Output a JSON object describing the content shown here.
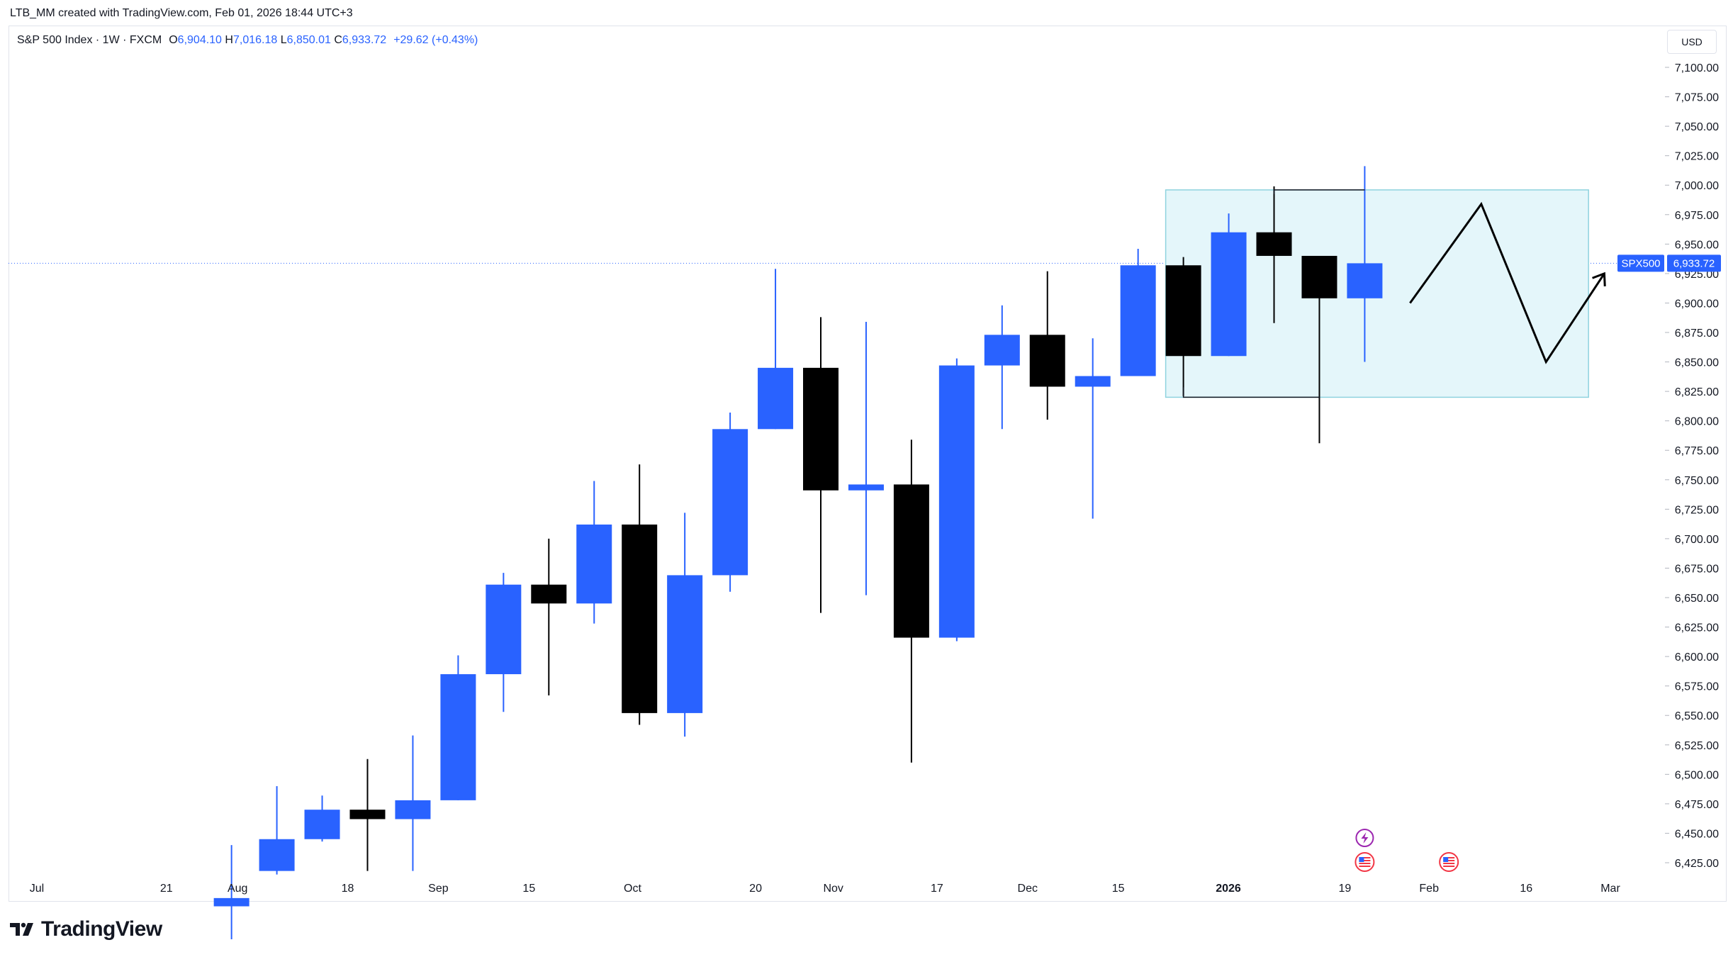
{
  "header": {
    "attribution": "LTB_MM created with TradingView.com, Feb 01, 2026 18:44 UTC+3"
  },
  "legend": {
    "symbol": "S&P 500 Index · 1W · FXCM",
    "open_key": "O",
    "open": "6,904.10",
    "high_key": "H",
    "high": "7,016.18",
    "low_key": "L",
    "low": "6,850.01",
    "close_key": "C",
    "close": "6,933.72",
    "change": "+29.62 (+0.43%)"
  },
  "currency": "USD",
  "price_badge": {
    "ticker": "SPX500",
    "price": "6,933.72"
  },
  "logo": {
    "text": "TradingView",
    "icon": "tradingview-logo-icon"
  },
  "colors": {
    "up": "#2962ff",
    "down": "#000000",
    "box_fill": "#e4f6fa",
    "box_border": "#8fd3df"
  },
  "chart_data": {
    "type": "candlestick",
    "timeframe": "1W",
    "ylim": [
      6400,
      7125
    ],
    "y_ticks": [
      {
        "v": 7100,
        "label": "7,100.00"
      },
      {
        "v": 7075,
        "label": "7,075.00"
      },
      {
        "v": 7050,
        "label": "7,050.00"
      },
      {
        "v": 7025,
        "label": "7,025.00"
      },
      {
        "v": 7000,
        "label": "7,000.00"
      },
      {
        "v": 6975,
        "label": "6,975.00"
      },
      {
        "v": 6950,
        "label": "6,950.00"
      },
      {
        "v": 6925,
        "label": "6,925.00"
      },
      {
        "v": 6900,
        "label": "6,900.00"
      },
      {
        "v": 6875,
        "label": "6,875.00"
      },
      {
        "v": 6850,
        "label": "6,850.00"
      },
      {
        "v": 6825,
        "label": "6,825.00"
      },
      {
        "v": 6800,
        "label": "6,800.00"
      },
      {
        "v": 6775,
        "label": "6,775.00"
      },
      {
        "v": 6750,
        "label": "6,750.00"
      },
      {
        "v": 6725,
        "label": "6,725.00"
      },
      {
        "v": 6700,
        "label": "6,700.00"
      },
      {
        "v": 6675,
        "label": "6,675.00"
      },
      {
        "v": 6650,
        "label": "6,650.00"
      },
      {
        "v": 6625,
        "label": "6,625.00"
      },
      {
        "v": 6600,
        "label": "6,600.00"
      },
      {
        "v": 6575,
        "label": "6,575.00"
      },
      {
        "v": 6550,
        "label": "6,550.00"
      },
      {
        "v": 6525,
        "label": "6,525.00"
      },
      {
        "v": 6500,
        "label": "6,500.00"
      },
      {
        "v": 6475,
        "label": "6,475.00"
      },
      {
        "v": 6450,
        "label": "6,450.00"
      },
      {
        "v": 6425,
        "label": "6,425.00"
      }
    ],
    "x_ticks": [
      {
        "date": "2025-07-01",
        "label": "Jul"
      },
      {
        "date": "2025-07-21",
        "label": "21"
      },
      {
        "date": "2025-08-01",
        "label": "Aug"
      },
      {
        "date": "2025-08-18",
        "label": "18"
      },
      {
        "date": "2025-09-01",
        "label": "Sep"
      },
      {
        "date": "2025-09-15",
        "label": "15"
      },
      {
        "date": "2025-10-01",
        "label": "Oct"
      },
      {
        "date": "2025-10-20",
        "label": "20"
      },
      {
        "date": "2025-11-01",
        "label": "Nov"
      },
      {
        "date": "2025-11-17",
        "label": "17"
      },
      {
        "date": "2025-12-01",
        "label": "Dec"
      },
      {
        "date": "2025-12-15",
        "label": "15"
      },
      {
        "date": "2026-01-01",
        "label": "2026",
        "bold": true
      },
      {
        "date": "2026-01-19",
        "label": "19"
      },
      {
        "date": "2026-02-01",
        "label": "Feb"
      },
      {
        "date": "2026-02-16",
        "label": "16"
      },
      {
        "date": "2026-03-01",
        "label": "Mar"
      }
    ],
    "candles": [
      {
        "date": "2025-07-28",
        "open": 6388,
        "high": 6440,
        "low": 6360,
        "close": 6395
      },
      {
        "date": "2025-08-04",
        "open": 6418,
        "high": 6490,
        "low": 6415,
        "close": 6445
      },
      {
        "date": "2025-08-11",
        "open": 6445,
        "high": 6482,
        "low": 6443,
        "close": 6470
      },
      {
        "date": "2025-08-18",
        "open": 6470,
        "high": 6513,
        "low": 6418,
        "close": 6462
      },
      {
        "date": "2025-08-25",
        "open": 6462,
        "high": 6533,
        "low": 6418,
        "close": 6478
      },
      {
        "date": "2025-09-01",
        "open": 6478,
        "high": 6601,
        "low": 6478,
        "close": 6585
      },
      {
        "date": "2025-09-08",
        "open": 6585,
        "high": 6671,
        "low": 6553,
        "close": 6661
      },
      {
        "date": "2025-09-15",
        "open": 6661,
        "high": 6700,
        "low": 6567,
        "close": 6645
      },
      {
        "date": "2025-09-22",
        "open": 6645,
        "high": 6749,
        "low": 6628,
        "close": 6712
      },
      {
        "date": "2025-09-29",
        "open": 6712,
        "high": 6763,
        "low": 6542,
        "close": 6552
      },
      {
        "date": "2025-10-06",
        "open": 6552,
        "high": 6722,
        "low": 6532,
        "close": 6669
      },
      {
        "date": "2025-10-13",
        "open": 6669,
        "high": 6807,
        "low": 6655,
        "close": 6793
      },
      {
        "date": "2025-10-20",
        "open": 6793,
        "high": 6929,
        "low": 6793,
        "close": 6845
      },
      {
        "date": "2025-10-27",
        "open": 6845,
        "high": 6888,
        "low": 6637,
        "close": 6741
      },
      {
        "date": "2025-11-03",
        "open": 6741,
        "high": 6884,
        "low": 6652,
        "close": 6746
      },
      {
        "date": "2025-11-10",
        "open": 6746,
        "high": 6784,
        "low": 6510,
        "close": 6616
      },
      {
        "date": "2025-11-17",
        "open": 6616,
        "high": 6853,
        "low": 6613,
        "close": 6847
      },
      {
        "date": "2025-11-24",
        "open": 6847,
        "high": 6898,
        "low": 6793,
        "close": 6873
      },
      {
        "date": "2025-12-01",
        "open": 6873,
        "high": 6927,
        "low": 6801,
        "close": 6829
      },
      {
        "date": "2025-12-08",
        "open": 6829,
        "high": 6870,
        "low": 6717,
        "close": 6838
      },
      {
        "date": "2025-12-15",
        "open": 6838,
        "high": 6946,
        "low": 6838,
        "close": 6932
      },
      {
        "date": "2025-12-22",
        "open": 6932,
        "high": 6939,
        "low": 6821,
        "close": 6855
      },
      {
        "date": "2025-12-29",
        "open": 6855,
        "high": 6976,
        "low": 6855,
        "close": 6960
      },
      {
        "date": "2026-01-05",
        "open": 6960,
        "high": 6999,
        "low": 6883,
        "close": 6940
      },
      {
        "date": "2026-01-12",
        "open": 6940,
        "high": 6940,
        "low": 6781,
        "close": 6904
      },
      {
        "date": "2026-01-19",
        "open": 6904,
        "high": 7016.18,
        "low": 6850.01,
        "close": 6933.72
      }
    ],
    "current_price": 6933.72,
    "annotations": {
      "range_box": {
        "start": "2025-12-22",
        "end": "2026-02-23",
        "top": 6996,
        "bottom": 6820
      },
      "range_line_top": {
        "from": "2026-01-05",
        "to": "2026-01-19",
        "value": 6996
      },
      "range_line_bottom": {
        "from": "2025-12-22",
        "to": "2026-01-12",
        "value": 6820
      },
      "projection_path": [
        {
          "date": "2026-01-26",
          "value": 6900
        },
        {
          "date": "2026-02-06",
          "value": 6984
        },
        {
          "date": "2026-02-16",
          "value": 6850
        },
        {
          "date": "2026-02-25",
          "value": 6925
        }
      ],
      "events": [
        {
          "date": "2026-01-19",
          "row": 0,
          "icon": "lightning-icon"
        },
        {
          "date": "2026-01-19",
          "row": 1,
          "icon": "us-flag-icon"
        },
        {
          "date": "2026-02-01",
          "row": 1,
          "icon": "us-flag-icon"
        }
      ]
    }
  }
}
